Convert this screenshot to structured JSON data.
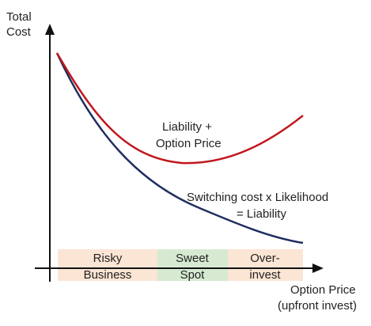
{
  "axes": {
    "y_label_line1": "Total",
    "y_label_line2": "Cost",
    "x_label_line1": "Option Price",
    "x_label_line2": "(upfront invest)"
  },
  "curves": {
    "total": {
      "label_line1": "Liability +",
      "label_line2": "Option Price",
      "color": "#c0161c"
    },
    "liability": {
      "label_line1": "Switching cost x Likelihood",
      "label_line2": "= Liability",
      "color": "#1f2f5f"
    }
  },
  "zones": {
    "risky": {
      "line1": "Risky",
      "line2": "Business",
      "color": "#fbe5d4"
    },
    "sweet": {
      "line1": "Sweet",
      "line2": "Spot",
      "color": "#d6ead2"
    },
    "over": {
      "line1": "Over-",
      "line2": "invest",
      "color": "#fbe5d4"
    }
  },
  "axis_color": "#111111"
}
